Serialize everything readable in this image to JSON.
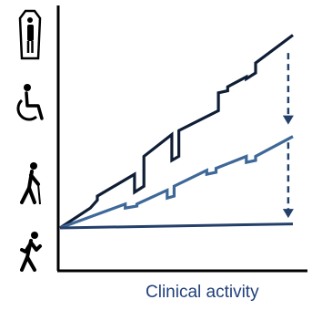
{
  "chart_data": {
    "type": "line",
    "xlabel": "Clinical activity",
    "ylabel": "",
    "title": "",
    "grid": false,
    "ylevel_icons": [
      "coffin-person-icon",
      "wheelchair-icon",
      "walking-cane-icon",
      "walking-person-icon"
    ],
    "colors": {
      "dark": "#0f1e36",
      "medium": "#3e6898",
      "flat": "#24406a",
      "axis": "#000000",
      "label": "#1f3f7a"
    },
    "series": [
      {
        "points": [
          [
            0,
            0
          ],
          [
            0.13,
            0.1
          ],
          [
            0.16,
            0.14
          ],
          [
            0.16,
            0.16
          ],
          [
            0.32,
            0.27
          ],
          [
            0.32,
            0.18
          ],
          [
            0.36,
            0.21
          ],
          [
            0.36,
            0.36
          ],
          [
            0.48,
            0.47
          ],
          [
            0.48,
            0.34
          ],
          [
            0.51,
            0.36
          ],
          [
            0.51,
            0.49
          ],
          [
            0.68,
            0.59
          ],
          [
            0.68,
            0.68
          ],
          [
            0.72,
            0.69
          ],
          [
            0.72,
            0.71
          ],
          [
            0.8,
            0.76
          ],
          [
            0.8,
            0.75
          ],
          [
            0.84,
            0.78
          ],
          [
            0.84,
            0.83
          ],
          [
            1,
            0.97
          ]
        ]
      },
      {
        "points": [
          [
            0,
            0
          ],
          [
            0.28,
            0.12
          ],
          [
            0.28,
            0.1
          ],
          [
            0.33,
            0.11
          ],
          [
            0.33,
            0.12
          ],
          [
            0.46,
            0.19
          ],
          [
            0.46,
            0.15
          ],
          [
            0.49,
            0.16
          ],
          [
            0.49,
            0.21
          ],
          [
            0.63,
            0.29
          ],
          [
            0.63,
            0.27
          ],
          [
            0.67,
            0.28
          ],
          [
            0.67,
            0.3
          ],
          [
            0.8,
            0.36
          ],
          [
            0.8,
            0.33
          ],
          [
            0.84,
            0.34
          ],
          [
            0.84,
            0.36
          ],
          [
            1,
            0.46
          ]
        ]
      },
      {
        "points": [
          [
            0,
            0
          ],
          [
            1,
            0.02
          ]
        ]
      }
    ],
    "arrows": [
      {
        "x": 0.98,
        "from": 0.88,
        "to": 0.52
      },
      {
        "x": 0.98,
        "from": 0.43,
        "to": 0.05
      }
    ]
  }
}
